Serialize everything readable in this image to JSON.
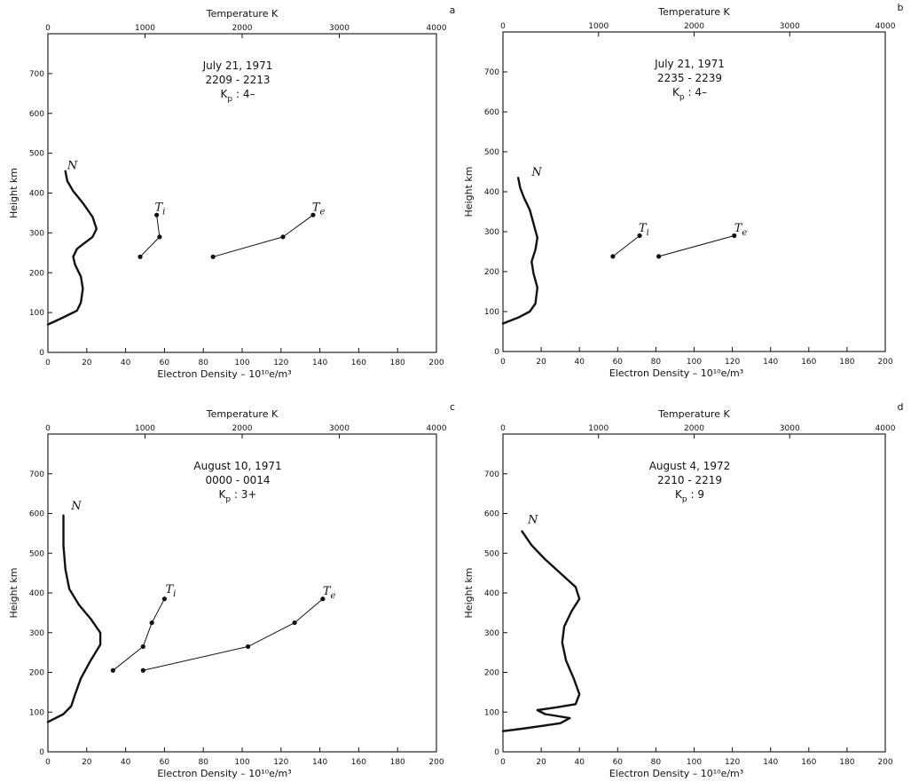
{
  "chart_data": [
    {
      "type": "line",
      "panel_label": "a",
      "top_axis_label": "Temperature  K",
      "top_ticks": [
        "0",
        "1000",
        "2000",
        "3000",
        "4000"
      ],
      "xlabel": "Electron  Density  –  10¹⁰e/m³",
      "ylabel": "Height  km",
      "x_ticks": [
        "0",
        "20",
        "40",
        "60",
        "80",
        "100",
        "120",
        "140",
        "160",
        "180",
        "200"
      ],
      "y_ticks": [
        "0",
        "100",
        "200",
        "300",
        "400",
        "500",
        "600",
        "700"
      ],
      "xlim": [
        0,
        200
      ],
      "ylim": [
        0,
        800
      ],
      "temp_lim": [
        0,
        4000
      ],
      "annotation": [
        "July 21, 1971",
        "2209 - 2213",
        "K",
        "p",
        " : 4–"
      ],
      "series": [
        {
          "name": "N",
          "axis": "density",
          "style": "thick",
          "label_at": [
            10,
            460
          ],
          "points": [
            [
              0,
              70
            ],
            [
              8,
              88
            ],
            [
              15,
              105
            ],
            [
              17,
              125
            ],
            [
              18,
              160
            ],
            [
              17,
              190
            ],
            [
              14,
              220
            ],
            [
              13,
              240
            ],
            [
              15,
              260
            ],
            [
              19,
              275
            ],
            [
              23,
              290
            ],
            [
              25,
              310
            ],
            [
              23,
              340
            ],
            [
              18,
              375
            ],
            [
              13,
              405
            ],
            [
              10,
              430
            ],
            [
              9,
              455
            ]
          ]
        },
        {
          "name": "T",
          "sub": "i",
          "axis": "temperature",
          "style": "thin",
          "label_at": [
            1100,
            355
          ],
          "points": [
            [
              950,
              240
            ],
            [
              1150,
              290
            ],
            [
              1120,
              345
            ]
          ]
        },
        {
          "name": "T",
          "sub": "e",
          "axis": "temperature",
          "style": "thin",
          "label_at": [
            2720,
            355
          ],
          "points": [
            [
              1700,
              240
            ],
            [
              2420,
              290
            ],
            [
              2730,
              345
            ]
          ]
        }
      ]
    },
    {
      "type": "line",
      "panel_label": "b",
      "top_axis_label": "Temperature  K",
      "top_ticks": [
        "0",
        "1000",
        "2000",
        "3000",
        "4000"
      ],
      "xlabel": "Electron  Density  –  10¹⁰e/m³",
      "ylabel": "Height  km",
      "x_ticks": [
        "0",
        "20",
        "40",
        "60",
        "80",
        "100",
        "120",
        "140",
        "160",
        "180",
        "200"
      ],
      "y_ticks": [
        "0",
        "100",
        "200",
        "300",
        "400",
        "500",
        "600",
        "700"
      ],
      "xlim": [
        0,
        200
      ],
      "ylim": [
        0,
        800
      ],
      "temp_lim": [
        0,
        4000
      ],
      "annotation": [
        "July 21, 1971",
        "2235 - 2239",
        "K",
        "p",
        " : 4–"
      ],
      "series": [
        {
          "name": "N",
          "axis": "density",
          "style": "thick",
          "label_at": [
            15,
            440
          ],
          "points": [
            [
              0,
              70
            ],
            [
              8,
              85
            ],
            [
              14,
              100
            ],
            [
              17,
              120
            ],
            [
              18,
              160
            ],
            [
              16,
              195
            ],
            [
              15,
              225
            ],
            [
              17,
              255
            ],
            [
              18,
              285
            ],
            [
              16,
              320
            ],
            [
              14,
              355
            ],
            [
              11,
              385
            ],
            [
              9,
              410
            ],
            [
              8,
              435
            ]
          ]
        },
        {
          "name": "T",
          "sub": "i",
          "axis": "temperature",
          "style": "thin",
          "label_at": [
            1420,
            300
          ],
          "points": [
            [
              1150,
              238
            ],
            [
              1430,
              290
            ]
          ]
        },
        {
          "name": "T",
          "sub": "e",
          "axis": "temperature",
          "style": "thin",
          "label_at": [
            2420,
            300
          ],
          "points": [
            [
              1630,
              238
            ],
            [
              2420,
              290
            ]
          ]
        }
      ]
    },
    {
      "type": "line",
      "panel_label": "c",
      "top_axis_label": "Temperature  K",
      "top_ticks": [
        "0",
        "1000",
        "2000",
        "3000",
        "4000"
      ],
      "xlabel": "Electron  Density  –  10¹⁰e/m³",
      "ylabel": "Height  km",
      "x_ticks": [
        "0",
        "20",
        "40",
        "60",
        "80",
        "100",
        "120",
        "140",
        "160",
        "180",
        "200"
      ],
      "y_ticks": [
        "0",
        "100",
        "200",
        "300",
        "400",
        "500",
        "600",
        "700"
      ],
      "xlim": [
        0,
        200
      ],
      "ylim": [
        0,
        800
      ],
      "temp_lim": [
        0,
        4000
      ],
      "annotation": [
        "August 10, 1971",
        "0000 - 0014",
        "K",
        "p",
        " : 3+"
      ],
      "series": [
        {
          "name": "N",
          "axis": "density",
          "style": "thick",
          "label_at": [
            12,
            610
          ],
          "points": [
            [
              0,
              75
            ],
            [
              8,
              95
            ],
            [
              12,
              115
            ],
            [
              14,
              145
            ],
            [
              17,
              185
            ],
            [
              22,
              230
            ],
            [
              27,
              270
            ],
            [
              27,
              300
            ],
            [
              22,
              335
            ],
            [
              16,
              370
            ],
            [
              11,
              410
            ],
            [
              9,
              460
            ],
            [
              8,
              520
            ],
            [
              8,
              595
            ]
          ]
        },
        {
          "name": "T",
          "sub": "i",
          "axis": "temperature",
          "style": "thin",
          "label_at": [
            1210,
            400
          ],
          "points": [
            [
              670,
              205
            ],
            [
              980,
              265
            ],
            [
              1070,
              325
            ],
            [
              1200,
              385
            ]
          ]
        },
        {
          "name": "T",
          "sub": "e",
          "axis": "temperature",
          "style": "thin",
          "label_at": [
            2830,
            395
          ],
          "points": [
            [
              980,
              205
            ],
            [
              2060,
              265
            ],
            [
              2540,
              325
            ],
            [
              2830,
              385
            ]
          ]
        }
      ]
    },
    {
      "type": "line",
      "panel_label": "d",
      "top_axis_label": "Temperature  K",
      "top_ticks": [
        "0",
        "1000",
        "2000",
        "3000",
        "4000"
      ],
      "xlabel": "Electron  Density  –  10¹⁰e/m³",
      "ylabel": "Height  km",
      "x_ticks": [
        "0",
        "20",
        "40",
        "60",
        "80",
        "100",
        "120",
        "140",
        "160",
        "180",
        "200"
      ],
      "y_ticks": [
        "0",
        "100",
        "200",
        "300",
        "400",
        "500",
        "600",
        "700"
      ],
      "xlim": [
        0,
        200
      ],
      "ylim": [
        0,
        800
      ],
      "temp_lim": [
        0,
        4000
      ],
      "annotation": [
        "August 4, 1972",
        "2210 - 2219",
        "K",
        "p",
        " : 9"
      ],
      "series": [
        {
          "name": "N",
          "axis": "density",
          "style": "thick",
          "label_at": [
            13,
            575
          ],
          "points": [
            [
              0,
              52
            ],
            [
              10,
              58
            ],
            [
              20,
              65
            ],
            [
              30,
              72
            ],
            [
              35,
              85
            ],
            [
              22,
              95
            ],
            [
              18,
              105
            ],
            [
              28,
              112
            ],
            [
              38,
              120
            ],
            [
              40,
              145
            ],
            [
              37,
              185
            ],
            [
              33,
              230
            ],
            [
              31,
              275
            ],
            [
              32,
              315
            ],
            [
              36,
              355
            ],
            [
              40,
              385
            ],
            [
              38,
              415
            ],
            [
              30,
              450
            ],
            [
              22,
              485
            ],
            [
              15,
              520
            ],
            [
              10,
              555
            ]
          ]
        }
      ]
    }
  ]
}
